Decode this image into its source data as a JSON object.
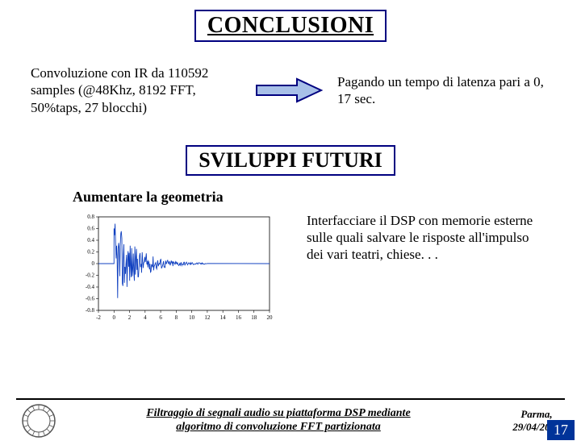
{
  "title": "CONCLUSIONI",
  "block1": {
    "left": "Convoluzione con IR da 110592 samples (@48Khz, 8192 FFT, 50%taps, 27 blocchi)",
    "right": "Pagando un tempo di latenza pari a 0, 17 sec."
  },
  "arrow": {
    "stroke": "#000080",
    "fill": "#a8c0e8"
  },
  "subtitle": "SVILUPPI FUTURI",
  "sub1": "Aumentare la geometria",
  "block2_right": "Interfacciare il DSP con memorie esterne sulle quali salvare le risposte all'impulso dei vari teatri, chiese. . .",
  "impulse_chart": {
    "type": "line",
    "xlim": [
      -2,
      20
    ],
    "ylim": [
      -0.8,
      0.8
    ],
    "xticks": [
      -2,
      0,
      2,
      4,
      6,
      8,
      10,
      12,
      14,
      16,
      18,
      20
    ],
    "yticks": [
      -0.8,
      -0.6,
      -0.4,
      -0.2,
      0,
      0.2,
      0.4,
      0.6,
      0.8
    ],
    "axis_color": "#000000",
    "line_color": "#1040c0",
    "background_color": "#ffffff",
    "tick_fontsize": 7,
    "burst": {
      "x_start": 0.0,
      "x_end": 12.0,
      "initial_amplitude": 0.78,
      "decay_rate": 0.35,
      "n_samples": 180
    }
  },
  "footer": {
    "mid_line1": "Filtraggio di segnali audio su piattaforma DSP mediante",
    "mid_line2": "algoritmo di convoluzione FFT partizionata",
    "right_line1": "Parma,",
    "right_line2": "29/04/2003"
  },
  "page_number": "17",
  "pagebox_bg": "#003399",
  "seal_color": "#555555"
}
